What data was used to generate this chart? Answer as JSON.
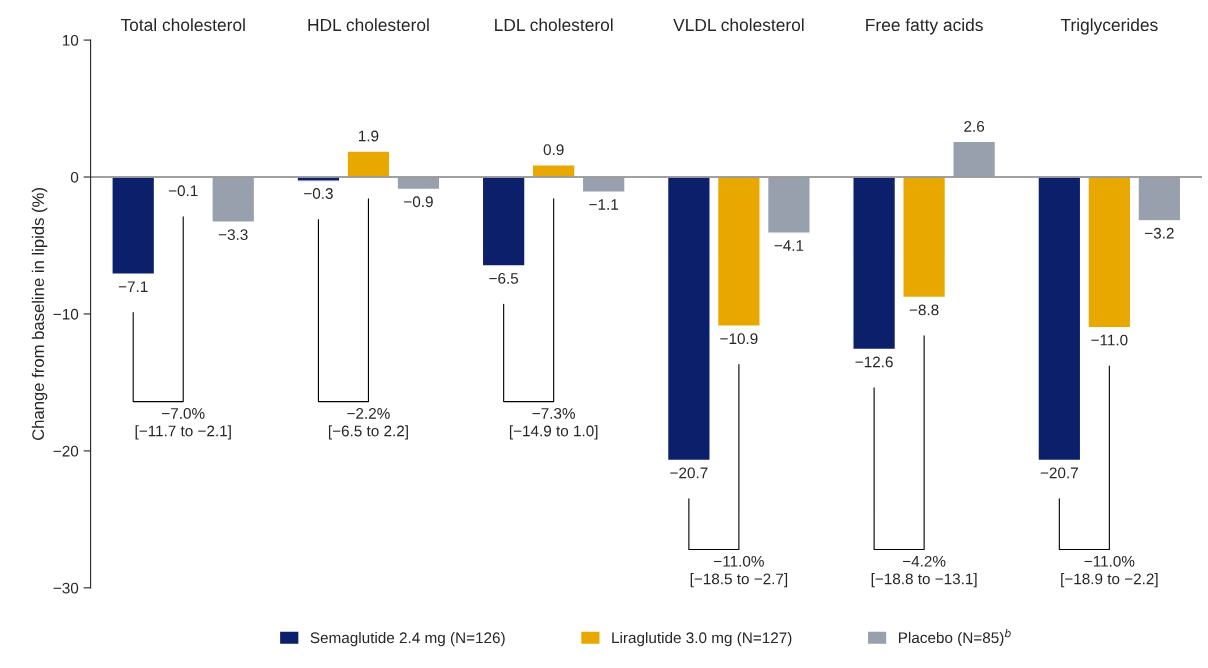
{
  "chart_data": {
    "type": "bar",
    "categories": [
      "Total cholesterol",
      "HDL cholesterol",
      "LDL cholesterol",
      "VLDL cholesterol",
      "Free fatty acids",
      "Triglycerides"
    ],
    "series": [
      {
        "name": "Semaglutide 2.4 mg (N=126)",
        "color": "#0b1f6b",
        "values": [
          -7.1,
          -0.3,
          -6.5,
          -20.7,
          -12.6,
          -20.7
        ],
        "value_labels": [
          "−7.1",
          "−0.3",
          "−6.5",
          "−20.7",
          "−12.6",
          "−20.7"
        ]
      },
      {
        "name": "Liraglutide 3.0 mg (N=127)",
        "color": "#e8a800",
        "values": [
          -0.1,
          1.9,
          0.9,
          -10.9,
          -8.8,
          -11.0
        ],
        "value_labels": [
          "−0.1",
          "1.9",
          "0.9",
          "−10.9",
          "−8.8",
          "−11.0"
        ]
      },
      {
        "name": "Placebo (N=85)$^{b}$",
        "color": "#98a0ae",
        "values": [
          -3.3,
          -0.9,
          -1.1,
          -4.1,
          2.6,
          -3.2
        ],
        "value_labels": [
          "−3.3",
          "−0.9",
          "−1.1",
          "−4.1",
          "2.6",
          "−3.2"
        ]
      }
    ],
    "ref_lines": [
      {
        "axis": "y",
        "value": 0,
        "color": "#808080"
      }
    ],
    "ylabel": "Change from baseline in lipids (%)",
    "ylim": [
      -30,
      10
    ],
    "yticks": [
      -30,
      -20,
      -10,
      0,
      10
    ],
    "grid": false,
    "legend": "bottom",
    "annotations": [
      "−7.0%\n[−11.7 to −2.1]",
      "−2.2%\n[−6.5 to 2.2]",
      "−7.3%\n[−14.9 to 1.0]",
      "−11.0%\n[−18.5 to −2.7]",
      "−4.2%\n[−18.8 to −13.1]",
      "−11.0%\n[−18.9 to −2.2]"
    ]
  }
}
